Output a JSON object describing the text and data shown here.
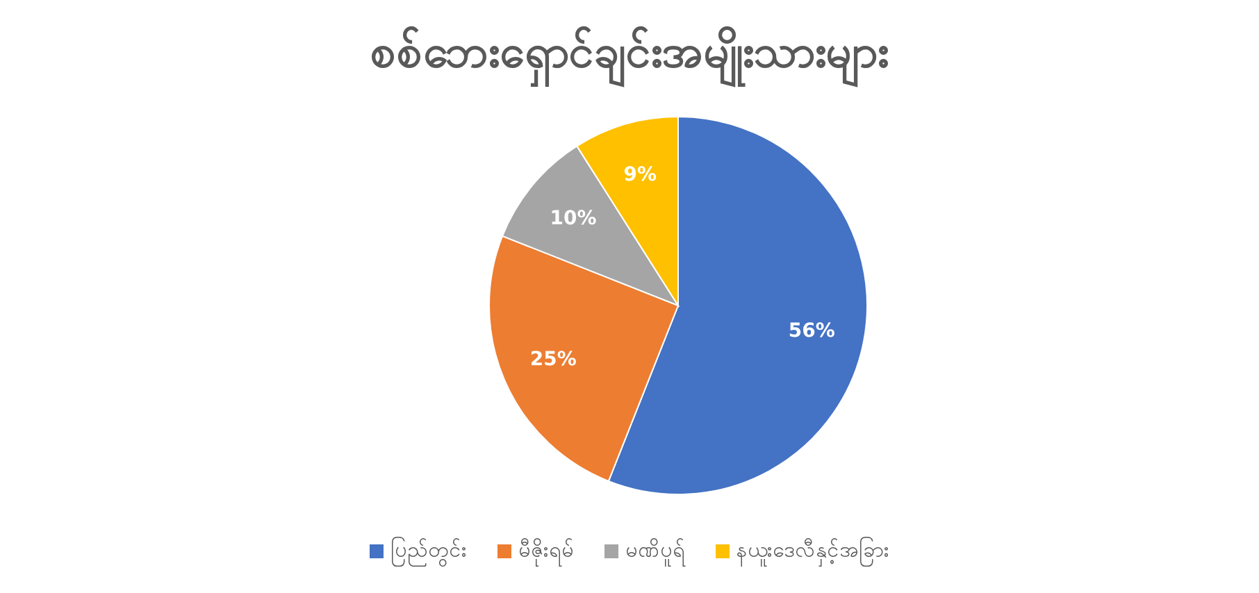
{
  "chart_data": {
    "type": "pie",
    "title": "စစ်ဘေးရှောင်ချင်းအမျိုးသားများ",
    "categories": [
      "ပြည်တွင်း",
      "မီဇိုးရမ်",
      "မဏိပူရ်",
      "နယူးဒေလီနှင့်အခြား"
    ],
    "values": [
      56,
      25,
      10,
      9
    ],
    "colors": [
      "#4472c4",
      "#ed7d31",
      "#a5a5a5",
      "#ffc000"
    ],
    "value_labels": [
      "56%",
      "25%",
      "10%",
      "9%"
    ],
    "legend": "bottom"
  }
}
